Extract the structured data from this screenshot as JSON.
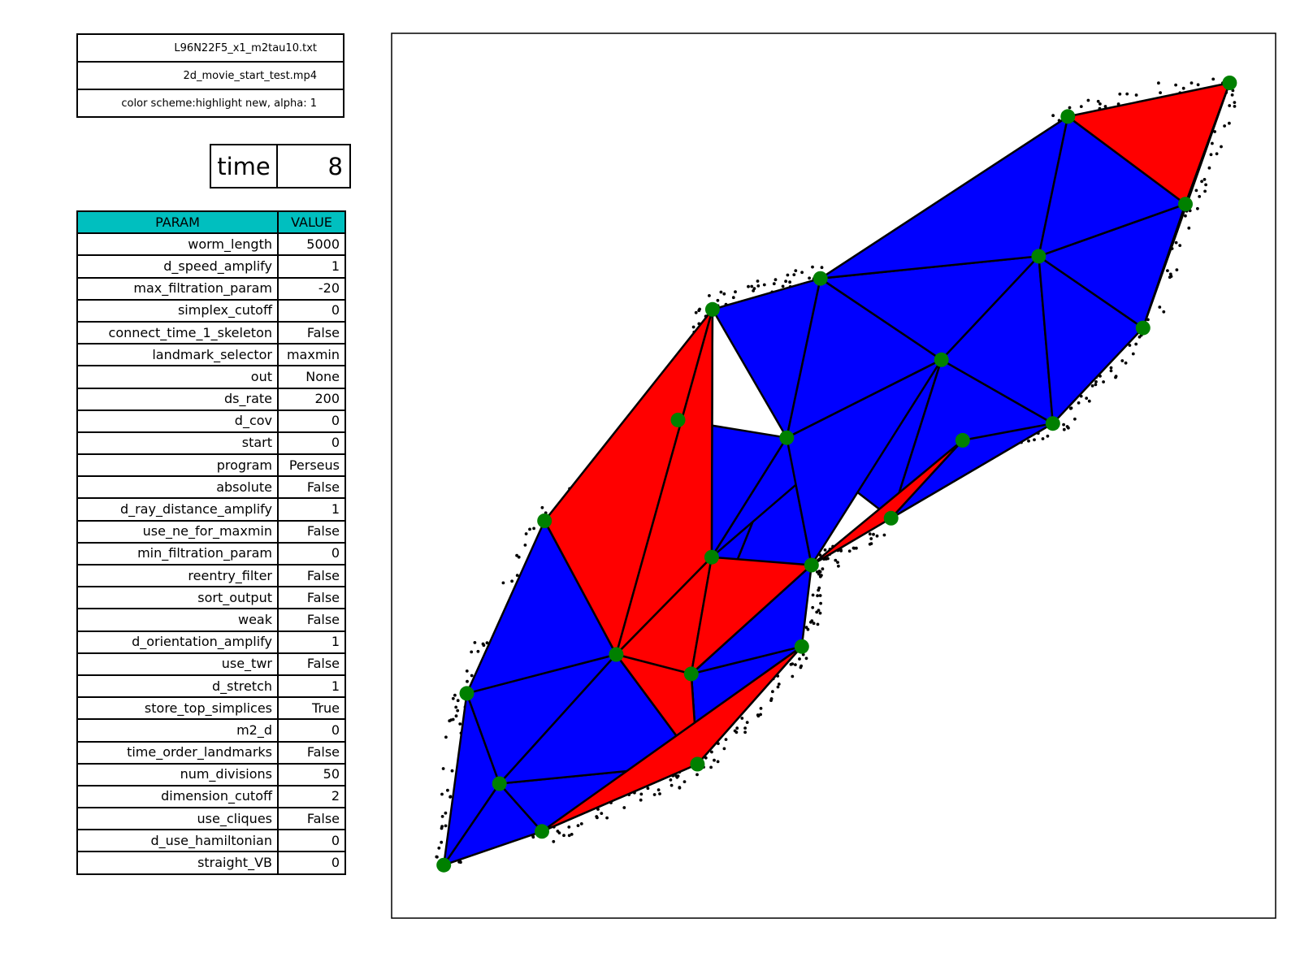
{
  "header": {
    "filename": "L96N22F5_x1_m2tau10.txt",
    "movie": "2d_movie_start_test.mp4",
    "color_scheme": "color scheme:highlight new, alpha: 1"
  },
  "time": {
    "label": "time",
    "value": "8"
  },
  "params": {
    "header_param": "PARAM",
    "header_value": "VALUE",
    "rows": [
      {
        "name": "worm_length",
        "value": "5000"
      },
      {
        "name": "d_speed_amplify",
        "value": "1"
      },
      {
        "name": "max_filtration_param",
        "value": "-20"
      },
      {
        "name": "simplex_cutoff",
        "value": "0"
      },
      {
        "name": "connect_time_1_skeleton",
        "value": "False"
      },
      {
        "name": "landmark_selector",
        "value": "maxmin"
      },
      {
        "name": "out",
        "value": "None"
      },
      {
        "name": "ds_rate",
        "value": "200"
      },
      {
        "name": "d_cov",
        "value": "0"
      },
      {
        "name": "start",
        "value": "0"
      },
      {
        "name": "program",
        "value": "Perseus"
      },
      {
        "name": "absolute",
        "value": "False"
      },
      {
        "name": "d_ray_distance_amplify",
        "value": "1"
      },
      {
        "name": "use_ne_for_maxmin",
        "value": "False"
      },
      {
        "name": "min_filtration_param",
        "value": "0"
      },
      {
        "name": "reentry_filter",
        "value": "False"
      },
      {
        "name": "sort_output",
        "value": "False"
      },
      {
        "name": "weak",
        "value": "False"
      },
      {
        "name": "d_orientation_amplify",
        "value": "1"
      },
      {
        "name": "use_twr",
        "value": "False"
      },
      {
        "name": "d_stretch",
        "value": "1"
      },
      {
        "name": "store_top_simplices",
        "value": "True"
      },
      {
        "name": "m2_d",
        "value": "0"
      },
      {
        "name": "time_order_landmarks",
        "value": "False"
      },
      {
        "name": "num_divisions",
        "value": "50"
      },
      {
        "name": "dimension_cutoff",
        "value": "2"
      },
      {
        "name": "use_cliques",
        "value": "False"
      },
      {
        "name": "d_use_hamiltonian",
        "value": "0"
      },
      {
        "name": "straight_VB",
        "value": "0"
      }
    ]
  },
  "colors": {
    "old_simplex": "#0000ff",
    "new_simplex": "#ff0000",
    "landmark": "#008000",
    "edge": "#000000",
    "witness": "#000000",
    "header_bg": "#00bfbf"
  },
  "chart_data": {
    "type": "scatter",
    "title": "",
    "xlabel": "",
    "ylabel": "",
    "axes_visible": false,
    "xlim": [
      0,
      1
    ],
    "ylim": [
      0,
      1
    ],
    "landmarks": [
      [
        0.059,
        0.06
      ],
      [
        0.085,
        0.254
      ],
      [
        0.122,
        0.152
      ],
      [
        0.17,
        0.098
      ],
      [
        0.173,
        0.449
      ],
      [
        0.254,
        0.298
      ],
      [
        0.324,
        0.563
      ],
      [
        0.339,
        0.276
      ],
      [
        0.346,
        0.174
      ],
      [
        0.362,
        0.408
      ],
      [
        0.363,
        0.688
      ],
      [
        0.447,
        0.543
      ],
      [
        0.475,
        0.399
      ],
      [
        0.464,
        0.307
      ],
      [
        0.565,
        0.452
      ],
      [
        0.485,
        0.723
      ],
      [
        0.622,
        0.631
      ],
      [
        0.646,
        0.54
      ],
      [
        0.748,
        0.559
      ],
      [
        0.732,
        0.748
      ],
      [
        0.85,
        0.667
      ],
      [
        0.898,
        0.807
      ],
      [
        0.765,
        0.906
      ],
      [
        0.948,
        0.944
      ]
    ],
    "triangles_old": [
      [
        0,
        1,
        2
      ],
      [
        0,
        2,
        3
      ],
      [
        1,
        2,
        5
      ],
      [
        2,
        3,
        8
      ],
      [
        2,
        5,
        8
      ],
      [
        1,
        4,
        5
      ],
      [
        7,
        13,
        8
      ],
      [
        7,
        5,
        8
      ],
      [
        7,
        12,
        13
      ],
      [
        7,
        11,
        12
      ],
      [
        7,
        9,
        11
      ],
      [
        9,
        6,
        11
      ],
      [
        9,
        6,
        10
      ],
      [
        9,
        11,
        16
      ],
      [
        10,
        15,
        11
      ],
      [
        11,
        15,
        16
      ],
      [
        11,
        14,
        16
      ],
      [
        11,
        12,
        16
      ],
      [
        14,
        17,
        16
      ],
      [
        14,
        16,
        18
      ],
      [
        14,
        17,
        18
      ],
      [
        15,
        16,
        19
      ],
      [
        16,
        18,
        19
      ],
      [
        19,
        18,
        20
      ],
      [
        19,
        21,
        20
      ],
      [
        15,
        19,
        22
      ],
      [
        19,
        21,
        22
      ]
    ],
    "triangles_new": [
      [
        4,
        5,
        10
      ],
      [
        5,
        9,
        10
      ],
      [
        5,
        7,
        9
      ],
      [
        9,
        7,
        12
      ],
      [
        5,
        7,
        8
      ],
      [
        8,
        3,
        13
      ],
      [
        14,
        17,
        12
      ],
      [
        21,
        22,
        23
      ],
      [
        21,
        20,
        23
      ]
    ],
    "witness_count": 720
  }
}
